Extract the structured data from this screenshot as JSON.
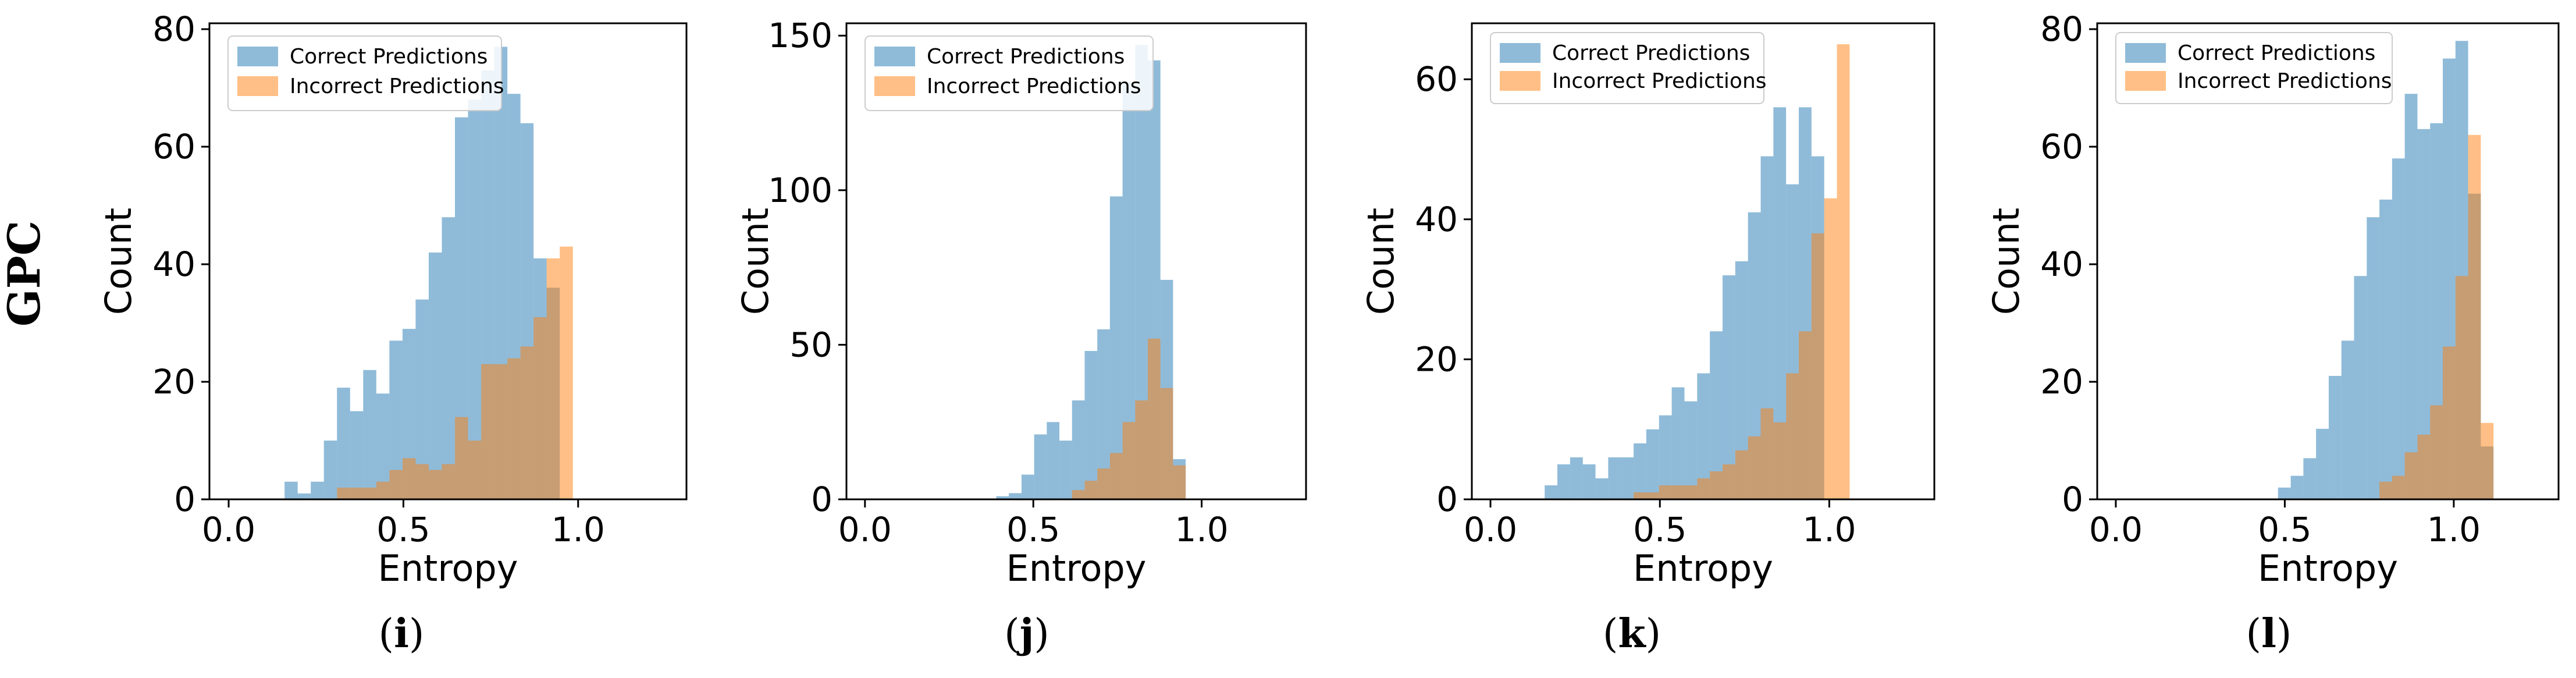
{
  "row_label": "GPC",
  "colors": {
    "correct": "#1f77b4",
    "incorrect": "#ff7f0e",
    "axis": "#000000",
    "legend_border": "#cccccc"
  },
  "chart_data": [
    {
      "type": "bar",
      "caption_letter": "i",
      "xlabel": "Entropy",
      "ylabel": "Count",
      "xlim": [
        -0.055,
        1.31
      ],
      "ylim": [
        0,
        81
      ],
      "xticks": [
        0.0,
        0.5,
        1.0
      ],
      "xtick_labels": [
        "0.0",
        "0.5",
        "1.0"
      ],
      "yticks": [
        0,
        20,
        40,
        60,
        80
      ],
      "ytick_labels": [
        "0",
        "20",
        "40",
        "60",
        "80"
      ],
      "bin_start": 0.16,
      "bin_width": 0.0375,
      "legend": [
        "Correct Predictions",
        "Incorrect Predictions"
      ],
      "series": [
        {
          "name": "Correct Predictions",
          "values": [
            3,
            1,
            3,
            10,
            19,
            15,
            22,
            18,
            27,
            29,
            34,
            42,
            48,
            65,
            68,
            73,
            77,
            69,
            64,
            41,
            36
          ]
        },
        {
          "name": "Incorrect Predictions",
          "values": [
            0,
            0,
            0,
            0,
            2,
            2,
            2,
            3,
            5,
            7,
            6,
            5,
            6,
            14,
            10,
            23,
            23,
            24,
            26,
            31,
            41,
            43
          ]
        }
      ]
    },
    {
      "type": "bar",
      "caption_letter": "j",
      "xlabel": "Entropy",
      "ylabel": "Count",
      "xlim": [
        -0.055,
        1.31
      ],
      "ylim": [
        0,
        154
      ],
      "xticks": [
        0.0,
        0.5,
        1.0
      ],
      "xtick_labels": [
        "0.0",
        "0.5",
        "1.0"
      ],
      "yticks": [
        0,
        50,
        100,
        150
      ],
      "ytick_labels": [
        "0",
        "50",
        "100",
        "150"
      ],
      "bin_start": 0.39,
      "bin_width": 0.0375,
      "legend": [
        "Correct Predictions",
        "Incorrect Predictions"
      ],
      "series": [
        {
          "name": "Correct Predictions",
          "values": [
            1,
            2,
            8,
            21,
            25,
            19,
            32,
            48,
            55,
            98,
            135,
            147,
            142,
            71,
            13
          ]
        },
        {
          "name": "Incorrect Predictions",
          "values": [
            0,
            0,
            0,
            0,
            0,
            0,
            3,
            6,
            10,
            15,
            25,
            32,
            52,
            36,
            11
          ]
        }
      ]
    },
    {
      "type": "bar",
      "caption_letter": "k",
      "xlabel": "Entropy",
      "ylabel": "Count",
      "xlim": [
        -0.055,
        1.31
      ],
      "ylim": [
        0,
        68
      ],
      "xticks": [
        0.0,
        0.5,
        1.0
      ],
      "xtick_labels": [
        "0.0",
        "0.5",
        "1.0"
      ],
      "yticks": [
        0,
        20,
        40,
        60
      ],
      "ytick_labels": [
        "0",
        "20",
        "40",
        "60"
      ],
      "bin_start": 0.16,
      "bin_width": 0.0375,
      "legend": [
        "Correct Predictions",
        "Incorrect Predictions"
      ],
      "series": [
        {
          "name": "Correct Predictions",
          "values": [
            2,
            5,
            6,
            5,
            3,
            6,
            6,
            8,
            10,
            12,
            16,
            14,
            18,
            24,
            32,
            34,
            41,
            49,
            56,
            45,
            56,
            49
          ]
        },
        {
          "name": "Incorrect Predictions",
          "values": [
            0,
            0,
            0,
            0,
            0,
            0,
            0,
            1,
            1,
            2,
            2,
            2,
            3,
            4,
            5,
            7,
            9,
            13,
            11,
            18,
            24,
            38,
            43,
            65
          ]
        }
      ]
    },
    {
      "type": "bar",
      "caption_letter": "l",
      "xlabel": "Entropy",
      "ylabel": "Count",
      "xlim": [
        -0.055,
        1.31
      ],
      "ylim": [
        0,
        81
      ],
      "xticks": [
        0.0,
        0.5,
        1.0
      ],
      "xtick_labels": [
        "0.0",
        "0.5",
        "1.0"
      ],
      "yticks": [
        0,
        20,
        40,
        60,
        80
      ],
      "ytick_labels": [
        "0",
        "20",
        "40",
        "60",
        "80"
      ],
      "bin_start": 0.48,
      "bin_width": 0.0375,
      "legend": [
        "Correct Predictions",
        "Incorrect Predictions"
      ],
      "series": [
        {
          "name": "Correct Predictions",
          "values": [
            2,
            4,
            7,
            12,
            21,
            27,
            38,
            48,
            51,
            58,
            69,
            63,
            64,
            75,
            78,
            52,
            9
          ]
        },
        {
          "name": "Incorrect Predictions",
          "values": [
            0,
            0,
            0,
            0,
            0,
            0,
            0,
            0,
            3,
            4,
            8,
            11,
            16,
            26,
            38,
            62,
            13
          ]
        }
      ]
    }
  ]
}
